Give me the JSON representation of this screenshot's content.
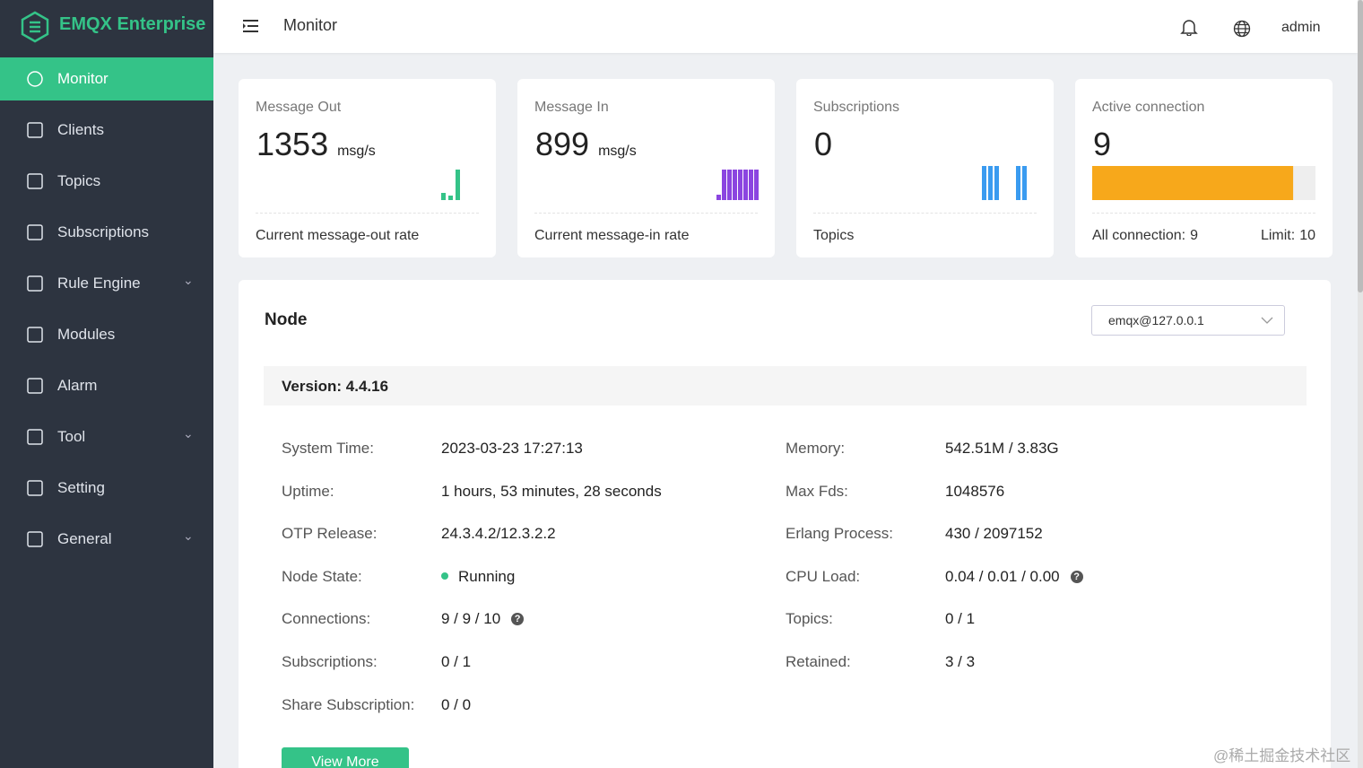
{
  "brand": "EMQX Enterprise",
  "sidebar": [
    {
      "label": "Monitor",
      "active": true
    },
    {
      "label": "Clients"
    },
    {
      "label": "Topics"
    },
    {
      "label": "Subscriptions"
    },
    {
      "label": "Rule Engine",
      "expandable": true
    },
    {
      "label": "Modules"
    },
    {
      "label": "Alarm"
    },
    {
      "label": "Tool",
      "expandable": true
    },
    {
      "label": "Setting"
    },
    {
      "label": "General",
      "expandable": true
    }
  ],
  "header": {
    "title": "Monitor",
    "user": "admin"
  },
  "cards": [
    {
      "title": "Message Out",
      "value": 1353,
      "unit": "msg/s",
      "footer": "Current message-out rate"
    },
    {
      "title": "Message In",
      "value": 899,
      "unit": "msg/s",
      "footer": "Current message-in rate"
    },
    {
      "title": "Subscriptions",
      "value": 0,
      "footer": "Topics"
    },
    {
      "title": "Active connection",
      "value": 9,
      "footer_left": {
        "label": "All connection:",
        "value": 9
      },
      "footer_right": {
        "label": "Limit:",
        "value": 10
      }
    }
  ],
  "node": {
    "title": "Node",
    "selected": "emqx@127.0.0.1",
    "version": "Version: 4.4.16",
    "left": [
      {
        "label": "System Time:",
        "value": "2023-03-23 17:27:13"
      },
      {
        "label": "Uptime:",
        "value": "1 hours, 53 minutes, 28 seconds"
      },
      {
        "label": "OTP Release:",
        "value": "24.3.4.2/12.3.2.2"
      },
      {
        "label": "Node State:",
        "value": "Running",
        "status": true
      },
      {
        "label": "Connections:",
        "value": "9 / 9 / 10",
        "help": true
      },
      {
        "label": "Subscriptions:",
        "value": "0 / 1"
      },
      {
        "label": "Share Subscription:",
        "value": "0 / 0"
      }
    ],
    "right": [
      {
        "label": "Memory:",
        "value": "542.51M / 3.83G"
      },
      {
        "label": "Max Fds:",
        "value": "1048576"
      },
      {
        "label": "Erlang Process:",
        "value": "430 / 2097152"
      },
      {
        "label": "CPU Load:",
        "value": "0.04 / 0.01 / 0.00",
        "help": true
      },
      {
        "label": "Topics:",
        "value": "0 / 1"
      },
      {
        "label": "Retained:",
        "value": "3 / 3"
      }
    ],
    "button": "View More"
  },
  "watermark": "@稀土掘金技术社区"
}
